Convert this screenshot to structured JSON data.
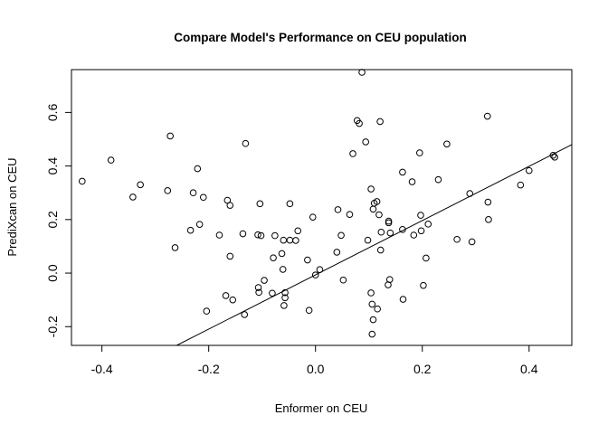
{
  "chart_data": {
    "type": "scatter",
    "title": "Compare Model's Performance on CEU population",
    "xlabel": "Enformer on CEU",
    "ylabel": "PrediXcan on CEU",
    "xlim": [
      -0.457,
      0.48
    ],
    "ylim": [
      -0.27,
      0.76
    ],
    "xticks": [
      -0.4,
      -0.2,
      0.0,
      0.2,
      0.4
    ],
    "xtick_labels": [
      "-0.4",
      "-0.2",
      "0.0",
      "0.2",
      "0.4"
    ],
    "yticks": [
      -0.2,
      0.0,
      0.2,
      0.4,
      0.6
    ],
    "ytick_labels": [
      "-0.2",
      "0.0",
      "0.2",
      "0.4",
      "0.6"
    ],
    "grid": false,
    "point_color": "#000000",
    "fit_line": {
      "color": "#000000",
      "points": [
        [
          -0.26,
          -0.27
        ],
        [
          0.48,
          0.48
        ]
      ]
    },
    "points": [
      {
        "x": -0.437,
        "y": 0.343
      },
      {
        "x": -0.383,
        "y": 0.422
      },
      {
        "x": -0.342,
        "y": 0.284
      },
      {
        "x": -0.328,
        "y": 0.33
      },
      {
        "x": -0.272,
        "y": 0.512
      },
      {
        "x": -0.277,
        "y": 0.308
      },
      {
        "x": -0.263,
        "y": 0.095
      },
      {
        "x": -0.234,
        "y": 0.16
      },
      {
        "x": -0.229,
        "y": 0.3
      },
      {
        "x": -0.221,
        "y": 0.39
      },
      {
        "x": -0.217,
        "y": 0.182
      },
      {
        "x": -0.21,
        "y": 0.283
      },
      {
        "x": -0.204,
        "y": -0.142
      },
      {
        "x": -0.18,
        "y": 0.142
      },
      {
        "x": -0.168,
        "y": -0.084
      },
      {
        "x": -0.165,
        "y": 0.272
      },
      {
        "x": -0.16,
        "y": 0.253
      },
      {
        "x": -0.16,
        "y": 0.063
      },
      {
        "x": -0.155,
        "y": -0.1
      },
      {
        "x": -0.136,
        "y": 0.147
      },
      {
        "x": -0.133,
        "y": -0.155
      },
      {
        "x": -0.131,
        "y": 0.484
      },
      {
        "x": -0.108,
        "y": 0.143
      },
      {
        "x": -0.107,
        "y": -0.054
      },
      {
        "x": -0.106,
        "y": -0.072
      },
      {
        "x": -0.104,
        "y": 0.259
      },
      {
        "x": -0.102,
        "y": 0.14
      },
      {
        "x": -0.096,
        "y": -0.027
      },
      {
        "x": -0.081,
        "y": -0.075
      },
      {
        "x": -0.079,
        "y": 0.057
      },
      {
        "x": -0.076,
        "y": 0.14
      },
      {
        "x": -0.063,
        "y": 0.073
      },
      {
        "x": -0.061,
        "y": 0.014
      },
      {
        "x": -0.06,
        "y": 0.123
      },
      {
        "x": -0.059,
        "y": -0.121
      },
      {
        "x": -0.057,
        "y": -0.073
      },
      {
        "x": -0.057,
        "y": -0.092
      },
      {
        "x": -0.048,
        "y": 0.259
      },
      {
        "x": -0.048,
        "y": 0.123
      },
      {
        "x": -0.037,
        "y": 0.122
      },
      {
        "x": -0.033,
        "y": 0.158
      },
      {
        "x": -0.015,
        "y": 0.049
      },
      {
        "x": -0.012,
        "y": -0.139
      },
      {
        "x": -0.005,
        "y": 0.209
      },
      {
        "x": 0.0,
        "y": -0.007
      },
      {
        "x": 0.008,
        "y": 0.013
      },
      {
        "x": 0.04,
        "y": 0.078
      },
      {
        "x": 0.042,
        "y": 0.237
      },
      {
        "x": 0.048,
        "y": 0.141
      },
      {
        "x": 0.052,
        "y": -0.026
      },
      {
        "x": 0.064,
        "y": 0.219
      },
      {
        "x": 0.07,
        "y": 0.446
      },
      {
        "x": 0.078,
        "y": 0.57
      },
      {
        "x": 0.082,
        "y": 0.559
      },
      {
        "x": 0.087,
        "y": 0.75
      },
      {
        "x": 0.094,
        "y": 0.49
      },
      {
        "x": 0.098,
        "y": 0.123
      },
      {
        "x": 0.104,
        "y": 0.314
      },
      {
        "x": 0.104,
        "y": -0.074
      },
      {
        "x": 0.106,
        "y": -0.116
      },
      {
        "x": 0.106,
        "y": -0.228
      },
      {
        "x": 0.108,
        "y": 0.239
      },
      {
        "x": 0.108,
        "y": -0.174
      },
      {
        "x": 0.11,
        "y": 0.261
      },
      {
        "x": 0.115,
        "y": 0.267
      },
      {
        "x": 0.116,
        "y": -0.134
      },
      {
        "x": 0.119,
        "y": 0.218
      },
      {
        "x": 0.121,
        "y": 0.566
      },
      {
        "x": 0.122,
        "y": 0.086
      },
      {
        "x": 0.123,
        "y": 0.153
      },
      {
        "x": 0.136,
        "y": -0.044
      },
      {
        "x": 0.137,
        "y": 0.194
      },
      {
        "x": 0.137,
        "y": 0.188
      },
      {
        "x": 0.14,
        "y": 0.15
      },
      {
        "x": 0.139,
        "y": -0.024
      },
      {
        "x": 0.163,
        "y": 0.377
      },
      {
        "x": 0.163,
        "y": 0.163
      },
      {
        "x": 0.164,
        "y": -0.098
      },
      {
        "x": 0.181,
        "y": 0.341
      },
      {
        "x": 0.184,
        "y": 0.142
      },
      {
        "x": 0.195,
        "y": 0.449
      },
      {
        "x": 0.197,
        "y": 0.216
      },
      {
        "x": 0.198,
        "y": 0.158
      },
      {
        "x": 0.202,
        "y": -0.046
      },
      {
        "x": 0.207,
        "y": 0.056
      },
      {
        "x": 0.211,
        "y": 0.183
      },
      {
        "x": 0.23,
        "y": 0.349
      },
      {
        "x": 0.246,
        "y": 0.482
      },
      {
        "x": 0.265,
        "y": 0.126
      },
      {
        "x": 0.289,
        "y": 0.297
      },
      {
        "x": 0.293,
        "y": 0.117
      },
      {
        "x": 0.322,
        "y": 0.586
      },
      {
        "x": 0.323,
        "y": 0.265
      },
      {
        "x": 0.324,
        "y": 0.2
      },
      {
        "x": 0.384,
        "y": 0.329
      },
      {
        "x": 0.4,
        "y": 0.383
      },
      {
        "x": 0.445,
        "y": 0.44
      },
      {
        "x": 0.448,
        "y": 0.433
      }
    ]
  }
}
